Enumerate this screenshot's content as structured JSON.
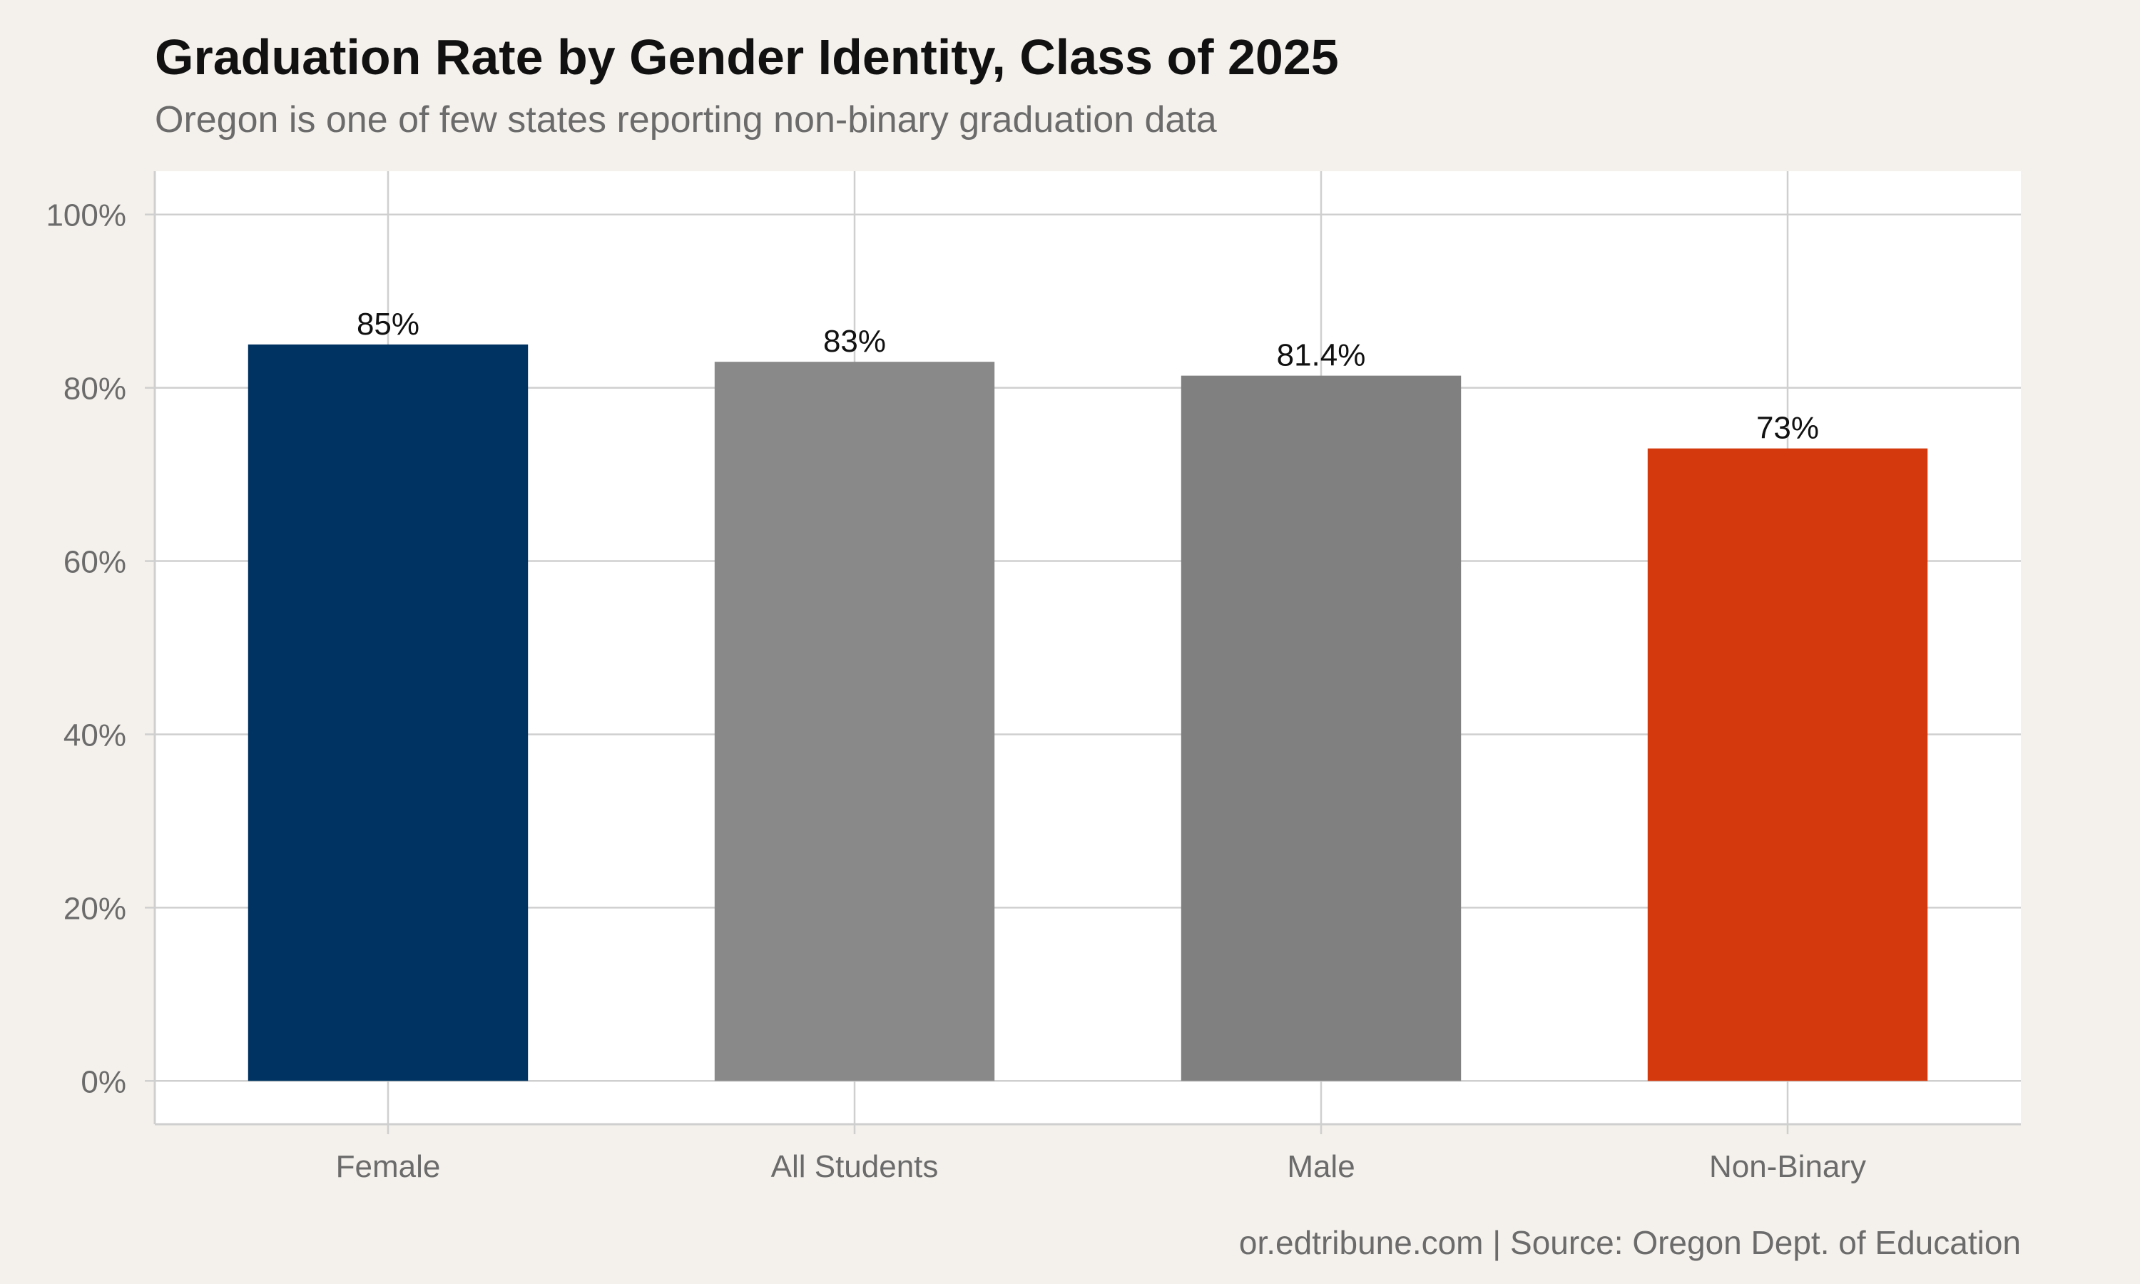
{
  "title": "Graduation Rate by Gender Identity, Class of 2025",
  "subtitle": "Oregon is one of few states reporting non-binary graduation data",
  "caption": "or.edtribune.com | Source: Oregon Dept. of Education",
  "colors": {
    "background": "#f4f1ec",
    "panel": "#ffffff",
    "grid": "#cfcfcf",
    "female": "#003361",
    "all_students": "#898989",
    "male": "#808080",
    "non_binary": "#d4380d"
  },
  "chart_data": {
    "type": "bar",
    "categories": [
      "Female",
      "All Students",
      "Male",
      "Non-Binary"
    ],
    "values": [
      85,
      83,
      81.4,
      73
    ],
    "value_labels": [
      "85%",
      "83%",
      "81.4%",
      "73%"
    ],
    "bar_colors": [
      "#003361",
      "#898989",
      "#808080",
      "#d4380d"
    ],
    "ylim": [
      -5,
      105
    ],
    "yticks": [
      0,
      20,
      40,
      60,
      80,
      100
    ],
    "ytick_labels": [
      "0%",
      "20%",
      "40%",
      "60%",
      "80%",
      "100%"
    ],
    "xlabel": "",
    "ylabel": "",
    "grid": true,
    "legend": "none"
  }
}
